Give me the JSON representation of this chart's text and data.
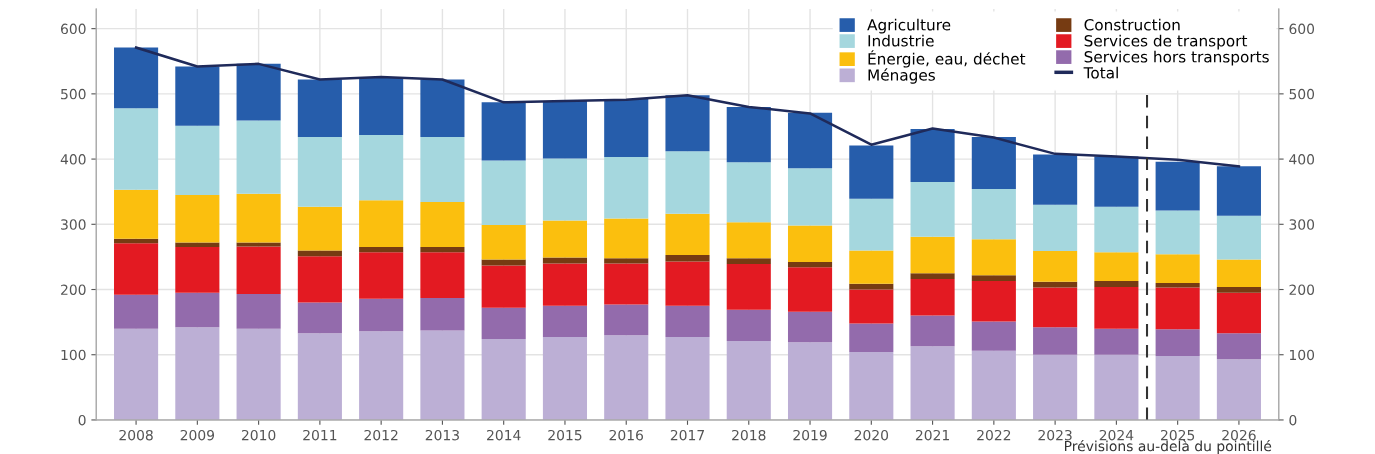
{
  "chart_data": {
    "type": "bar",
    "stacked": true,
    "x": [
      2008,
      2009,
      2010,
      2011,
      2012,
      2013,
      2014,
      2015,
      2016,
      2017,
      2018,
      2019,
      2020,
      2021,
      2022,
      2023,
      2024,
      2025,
      2026
    ],
    "xlim": [
      2007.35,
      2026.65
    ],
    "xticks": [
      2008,
      2009,
      2010,
      2011,
      2012,
      2013,
      2014,
      2015,
      2016,
      2017,
      2018,
      2019,
      2020,
      2021,
      2022,
      2023,
      2024,
      2025,
      2026
    ],
    "series": [
      {
        "name": "Ménages",
        "color": "#bcafd5",
        "values": [
          140,
          142,
          140,
          133,
          136,
          137,
          124,
          127,
          130,
          127,
          121,
          119,
          104,
          113,
          106,
          100,
          100,
          98,
          93
        ]
      },
      {
        "name": "Services hors transports",
        "color": "#936bac",
        "values": [
          52,
          53,
          53,
          47,
          50,
          50,
          48,
          48,
          47,
          48,
          48,
          47,
          44,
          47,
          45,
          42,
          40,
          41,
          40
        ]
      },
      {
        "name": "Services de transport",
        "color": "#e31a22",
        "values": [
          79,
          70,
          73,
          71,
          71,
          70,
          65,
          65,
          63,
          68,
          70,
          68,
          52,
          56,
          62,
          61,
          64,
          64,
          62
        ]
      },
      {
        "name": "Construction",
        "color": "#763b12",
        "values": [
          7,
          7,
          6,
          9,
          8,
          8,
          9,
          9,
          8,
          10,
          9,
          8,
          9,
          9,
          9,
          9,
          9,
          7,
          9
        ]
      },
      {
        "name": "Énergie, eau, déchet",
        "color": "#fbbf0e",
        "values": [
          75,
          73,
          75,
          67,
          72,
          69,
          53,
          57,
          61,
          63,
          55,
          56,
          51,
          56,
          55,
          47,
          44,
          44,
          42
        ]
      },
      {
        "name": "Industrie",
        "color": "#a5d7de",
        "values": [
          125,
          106,
          112,
          107,
          100,
          100,
          99,
          95,
          94,
          96,
          92,
          88,
          79,
          84,
          77,
          71,
          70,
          67,
          67
        ]
      },
      {
        "name": "Agriculture",
        "color": "#265dab",
        "values": [
          93,
          91,
          87,
          88,
          88,
          88,
          89,
          88,
          89,
          86,
          85,
          85,
          82,
          81,
          80,
          77,
          77,
          75,
          76
        ]
      },
      {
        "name": "Total",
        "type": "line",
        "color": "#1f2a5a",
        "values": [
          571,
          542,
          546,
          522,
          526,
          522,
          487,
          489,
          491,
          498,
          480,
          470,
          422,
          447,
          433,
          408,
          404,
          399,
          389
        ]
      }
    ],
    "ref_lines": [
      {
        "axis": "x",
        "value": 2024.5,
        "color": "#333333",
        "line_style": "dashed"
      }
    ],
    "ylim": [
      0,
      630
    ],
    "yticks": [
      0,
      100,
      200,
      300,
      400,
      500,
      600
    ],
    "y2lim": [
      0,
      630
    ],
    "y2ticks": [
      0,
      100,
      200,
      300,
      400,
      500,
      600
    ],
    "annotations": [
      "Prévisions au-delà du pointillé"
    ],
    "grid": true,
    "legend": "top right",
    "marker": "none",
    "line_style": "solid"
  }
}
